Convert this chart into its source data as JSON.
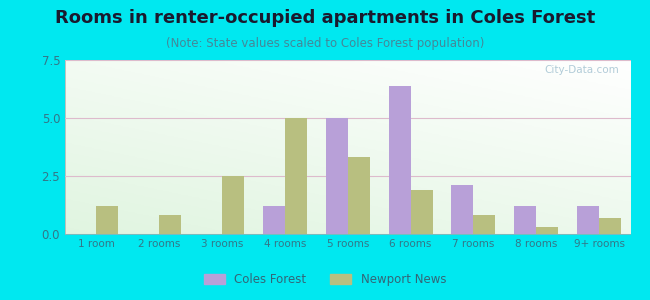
{
  "title": "Rooms in renter-occupied apartments in Coles Forest",
  "subtitle": "(Note: State values scaled to Coles Forest population)",
  "categories": [
    "1 room",
    "2 rooms",
    "3 rooms",
    "4 rooms",
    "5 rooms",
    "6 rooms",
    "7 rooms",
    "8 rooms",
    "9+ rooms"
  ],
  "coles_forest": [
    0,
    0,
    0,
    1.2,
    5.0,
    6.4,
    2.1,
    1.2,
    1.2
  ],
  "newport_news": [
    1.2,
    0.8,
    2.5,
    5.0,
    3.3,
    1.9,
    0.8,
    0.3,
    0.7
  ],
  "coles_color": "#b8a0d8",
  "newport_color": "#b8bf80",
  "ylim": [
    0,
    7.5
  ],
  "yticks": [
    0,
    2.5,
    5,
    7.5
  ],
  "background_outer": "#00e8f0",
  "title_fontsize": 13,
  "subtitle_fontsize": 8.5,
  "bar_width": 0.35
}
